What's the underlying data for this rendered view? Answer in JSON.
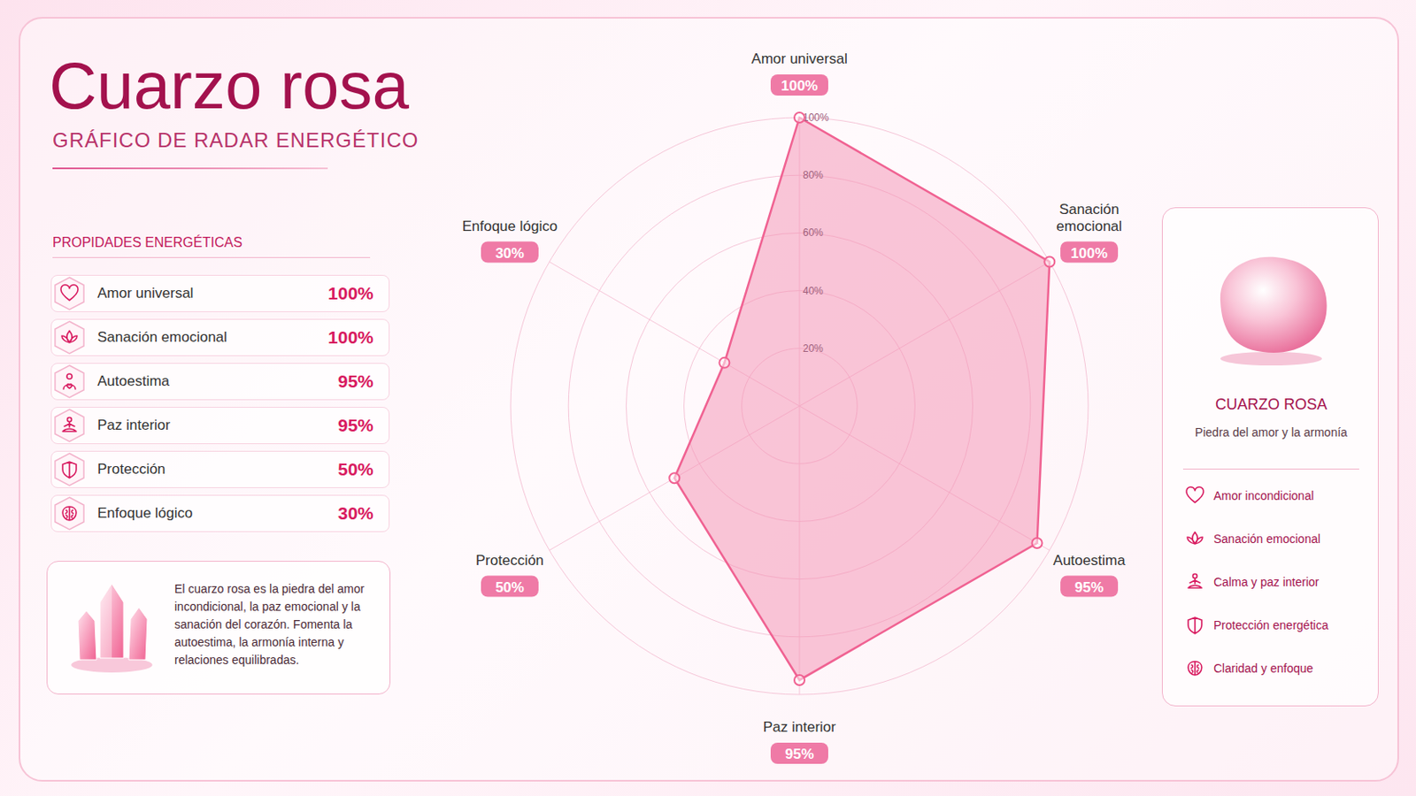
{
  "chart_data": {
    "type": "radar",
    "title": "Cuarzo rosa",
    "subtitle": "GRÁFICO DE RADAR ENERGÉTICO",
    "categories": [
      "Amor universal",
      "Sanación emocional",
      "Autoestima",
      "Paz interior",
      "Protección",
      "Enfoque lógico"
    ],
    "values": [
      100,
      100,
      95,
      95,
      50,
      30
    ],
    "value_labels": [
      "100%",
      "100%",
      "95%",
      "95%",
      "50%",
      "30%"
    ],
    "color": "#f06292",
    "ylim": [
      0,
      100
    ],
    "yticks": [
      {
        "value": 20,
        "label": "20%"
      },
      {
        "value": 40,
        "label": "40%"
      },
      {
        "value": 60,
        "label": "60%"
      },
      {
        "value": 80,
        "label": "80%"
      },
      {
        "value": 100,
        "label": "100%"
      }
    ],
    "grid": true,
    "data_labels": true
  },
  "properties_panel": {
    "title": "PROPIDADES ENERGÉTICAS"
  },
  "description": "El cuarzo rosa es la piedra del amor incondicional, la paz emocional y la sanación del corazón. Fomenta la autoestima, la armonía interna y relaciones equilibradas.",
  "stone_card": {
    "title": "CUARZO ROSA",
    "subtitle": "Piedra del amor y la armonía",
    "items": [
      "Amor incondicional",
      "Sanación emocional",
      "Calma y paz interior",
      "Protección energética",
      "Claridad y enfoque"
    ]
  }
}
